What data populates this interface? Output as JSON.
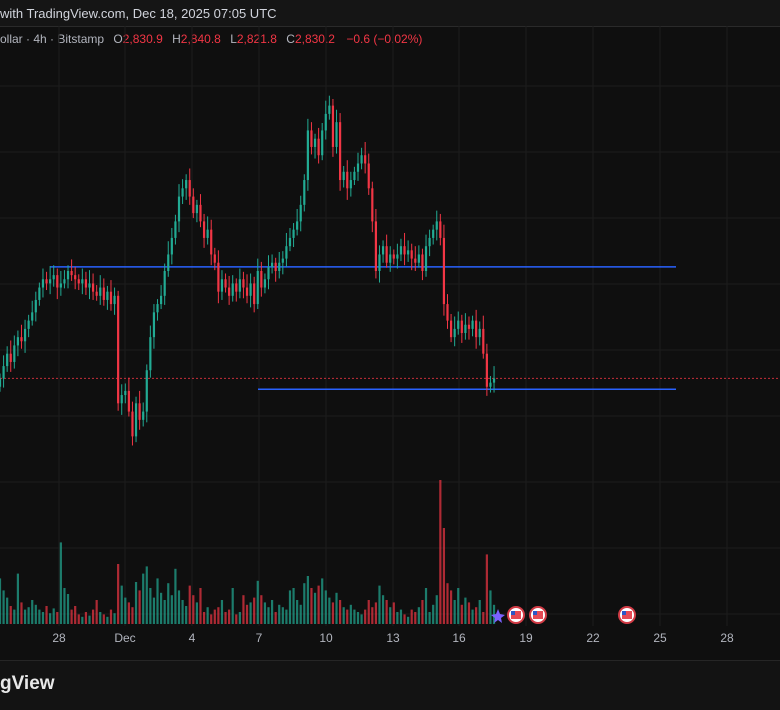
{
  "header": {
    "title": "with TradingView.com, Dec 18, 2025 07:05 UTC"
  },
  "legend": {
    "symbol": "ollar · 4h · Bitstamp",
    "open_label": "O",
    "open": "2,830.9",
    "high_label": "H",
    "high": "2,840.8",
    "low_label": "L",
    "low": "2,821.8",
    "close_label": "C",
    "close": "2,830.2",
    "change": "−0.6 (−0.02%)"
  },
  "footer": {
    "brand": "gView"
  },
  "colors": {
    "up": "#22ab94",
    "down": "#f23645",
    "level_line": "#2962ff",
    "background": "#0f0f0f",
    "grid": "#1c1c1c"
  },
  "chart_data": {
    "type": "candlestick",
    "title": "",
    "price_scale_visible": false,
    "x_tick_labels": [
      "28",
      "Dec",
      "4",
      "7",
      "10",
      "13",
      "16",
      "19",
      "22",
      "25",
      "28"
    ],
    "closes": [
      2830,
      2845,
      2860,
      2850,
      2870,
      2880,
      2875,
      2890,
      2900,
      2910,
      2925,
      2940,
      2950,
      2945,
      2950,
      2955,
      2940,
      2945,
      2950,
      2960,
      2955,
      2950,
      2945,
      2950,
      2940,
      2945,
      2935,
      2930,
      2940,
      2925,
      2935,
      2920,
      2930,
      2800,
      2810,
      2815,
      2790,
      2760,
      2800,
      2780,
      2790,
      2840,
      2880,
      2910,
      2920,
      2930,
      2960,
      2980,
      3000,
      3020,
      3050,
      3060,
      3070,
      3050,
      3030,
      3040,
      3020,
      3000,
      3010,
      2980,
      2970,
      2935,
      2950,
      2940,
      2930,
      2945,
      2935,
      2950,
      2940,
      2930,
      2945,
      2920,
      2960,
      2940,
      2950,
      2965,
      2970,
      2960,
      2970,
      2975,
      2990,
      3000,
      3010,
      3020,
      3040,
      3070,
      3130,
      3110,
      3120,
      3100,
      3130,
      3150,
      3160,
      3110,
      3140,
      3070,
      3080,
      3060,
      3070,
      3080,
      3090,
      3100,
      3090,
      3060,
      3020,
      2960,
      2980,
      2990,
      2970,
      2980,
      2975,
      2980,
      2990,
      2980,
      2985,
      2975,
      2970,
      2980,
      2960,
      2990,
      3000,
      3010,
      3020,
      3000,
      2920,
      2900,
      2880,
      2890,
      2900,
      2885,
      2895,
      2890,
      2900,
      2880,
      2890,
      2860,
      2820,
      2825,
      2830
    ],
    "horizontal_levels": [
      2965,
      2817
    ],
    "last_price": 2830.2,
    "volumes": [
      0.38,
      0.28,
      0.22,
      0.15,
      0.12,
      0.42,
      0.18,
      0.12,
      0.14,
      0.2,
      0.16,
      0.12,
      0.1,
      0.15,
      0.09,
      0.13,
      0.1,
      0.68,
      0.3,
      0.25,
      0.12,
      0.15,
      0.08,
      0.06,
      0.1,
      0.07,
      0.12,
      0.2,
      0.1,
      0.08,
      0.06,
      0.12,
      0.09,
      0.5,
      0.32,
      0.22,
      0.18,
      0.14,
      0.35,
      0.28,
      0.42,
      0.48,
      0.3,
      0.22,
      0.38,
      0.26,
      0.2,
      0.34,
      0.24,
      0.46,
      0.28,
      0.2,
      0.15,
      0.32,
      0.24,
      0.18,
      0.3,
      0.1,
      0.14,
      0.08,
      0.12,
      0.14,
      0.2,
      0.1,
      0.12,
      0.3,
      0.08,
      0.1,
      0.24,
      0.16,
      0.18,
      0.22,
      0.36,
      0.24,
      0.18,
      0.14,
      0.2,
      0.1,
      0.16,
      0.14,
      0.12,
      0.28,
      0.3,
      0.2,
      0.16,
      0.34,
      0.4,
      0.3,
      0.26,
      0.32,
      0.38,
      0.28,
      0.22,
      0.18,
      0.26,
      0.2,
      0.14,
      0.12,
      0.16,
      0.12,
      0.1,
      0.08,
      0.12,
      0.2,
      0.14,
      0.18,
      0.32,
      0.24,
      0.2,
      0.14,
      0.18,
      0.1,
      0.12,
      0.08,
      0.06,
      0.12,
      0.1,
      0.14,
      0.2,
      0.3,
      0.1,
      0.16,
      0.24,
      1.2,
      0.8,
      0.34,
      0.28,
      0.2,
      0.3,
      0.16,
      0.22,
      0.18,
      0.12,
      0.14,
      0.2,
      0.1,
      0.58,
      0.28,
      0.16
    ],
    "event_markers": 4
  }
}
